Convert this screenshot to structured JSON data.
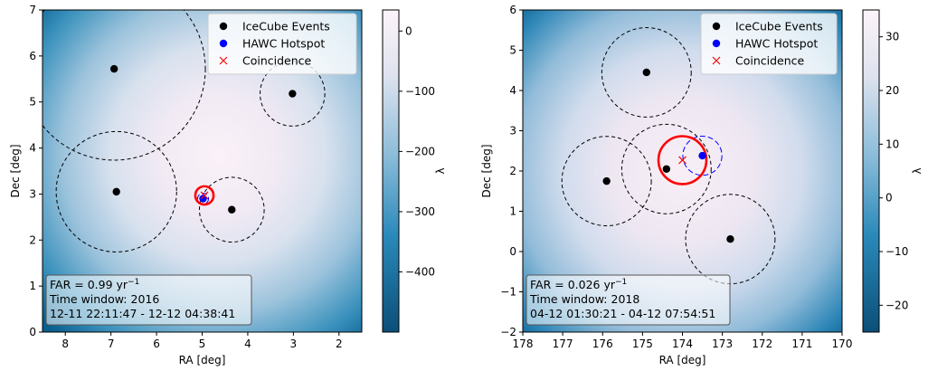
{
  "chart_data": [
    {
      "type": "scatter",
      "background": "likelihood map (lambda), light center fading to dark teal edges",
      "xlabel": "RA [deg]",
      "ylabel": "Dec [deg]",
      "xlim": [
        8.5,
        1.5
      ],
      "ylim": [
        0,
        7
      ],
      "x_inverted": true,
      "xticks": [
        8,
        7,
        6,
        5,
        4,
        3,
        2
      ],
      "yticks": [
        0,
        1,
        2,
        3,
        4,
        5,
        6,
        7
      ],
      "legend": {
        "placement": "top-right",
        "entries": [
          {
            "label": "IceCube Events",
            "marker": "circle",
            "color": "#000000"
          },
          {
            "label": "HAWC Hotspot",
            "marker": "circle",
            "color": "#0000ff"
          },
          {
            "label": "Coincidence",
            "marker": "x",
            "color": "#ff0000"
          }
        ]
      },
      "series": [
        {
          "name": "IceCube Events",
          "points": [
            {
              "x": 6.93,
              "y": 5.72,
              "r": 2.0
            },
            {
              "x": 3.02,
              "y": 5.18,
              "r": 0.71
            },
            {
              "x": 6.88,
              "y": 3.05,
              "r": 1.32
            },
            {
              "x": 4.35,
              "y": 2.66,
              "r": 0.71
            }
          ]
        },
        {
          "name": "HAWC Hotspot",
          "points": [
            {
              "x": 4.98,
              "y": 2.9,
              "r": 0.12
            }
          ]
        },
        {
          "name": "Coincidence",
          "points": [
            {
              "x": 4.95,
              "y": 2.97,
              "r": 0.2
            }
          ]
        }
      ],
      "annotation": {
        "far_prefix": "FAR = 0.99 yr",
        "far_exp": "−1",
        "line2": "Time window: 2016",
        "line3": "12-11 22:11:47 - 12-12 04:38:41"
      },
      "colorbar": {
        "label": "λ",
        "vmin": -500,
        "vmax": 35,
        "ticks": [
          {
            "v": 0,
            "t": "0"
          },
          {
            "v": -100,
            "t": "−100"
          },
          {
            "v": -200,
            "t": "−200"
          },
          {
            "v": -300,
            "t": "−300"
          },
          {
            "v": -400,
            "t": "−400"
          }
        ]
      }
    },
    {
      "type": "scatter",
      "background": "likelihood map (lambda), light center fading to dark teal edges",
      "xlabel": "RA [deg]",
      "ylabel": "Dec [deg]",
      "xlim": [
        178,
        170
      ],
      "ylim": [
        -2,
        6
      ],
      "x_inverted": true,
      "xticks": [
        178,
        177,
        176,
        175,
        174,
        173,
        172,
        171,
        170
      ],
      "yticks": [
        -2,
        -1,
        0,
        1,
        2,
        3,
        4,
        5,
        6
      ],
      "legend": {
        "placement": "top-right",
        "entries": [
          {
            "label": "IceCube Events",
            "marker": "circle",
            "color": "#000000"
          },
          {
            "label": "HAWC Hotspot",
            "marker": "circle",
            "color": "#0000ff"
          },
          {
            "label": "Coincidence",
            "marker": "x",
            "color": "#ff0000"
          }
        ]
      },
      "series": [
        {
          "name": "IceCube Events",
          "points": [
            {
              "x": 174.9,
              "y": 4.45,
              "r": 1.12
            },
            {
              "x": 175.9,
              "y": 1.75,
              "r": 1.12
            },
            {
              "x": 174.4,
              "y": 2.05,
              "r": 1.12
            },
            {
              "x": 172.8,
              "y": 0.31,
              "r": 1.12
            }
          ]
        },
        {
          "name": "HAWC Hotspot",
          "points": [
            {
              "x": 173.5,
              "y": 2.38,
              "r": 0.49
            }
          ]
        },
        {
          "name": "Coincidence",
          "points": [
            {
              "x": 174.0,
              "y": 2.27,
              "r": 0.6
            }
          ]
        }
      ],
      "annotation": {
        "far_prefix": "FAR = 0.026 yr",
        "far_exp": "−1",
        "line2": "Time window: 2018",
        "line3": "04-12 01:30:21 - 04-12 07:54:51"
      },
      "colorbar": {
        "label": "λ",
        "vmin": -25,
        "vmax": 35,
        "ticks": [
          {
            "v": 30,
            "t": "30"
          },
          {
            "v": 20,
            "t": "20"
          },
          {
            "v": 10,
            "t": "10"
          },
          {
            "v": 0,
            "t": "0"
          },
          {
            "v": -10,
            "t": "−10"
          },
          {
            "v": -20,
            "t": "−20"
          }
        ]
      }
    }
  ]
}
